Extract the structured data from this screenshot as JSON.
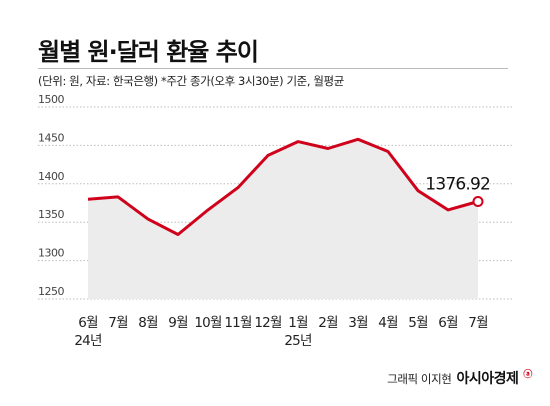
{
  "chart_data": {
    "type": "area",
    "title": "월별 원·달러 환율 추이",
    "subtitle": "(단위: 원, 자료: 한국은행)  *주간 종가(오후 3시30분) 기준, 월평균",
    "categories": [
      "6월",
      "7월",
      "8월",
      "9월",
      "10월",
      "11월",
      "12월",
      "1월",
      "2월",
      "3월",
      "4월",
      "5월",
      "6월",
      "7월"
    ],
    "year_labels": [
      "24년",
      "",
      "",
      "",
      "",
      "",
      "",
      "25년",
      "",
      "",
      "",
      "",
      "",
      ""
    ],
    "values": [
      1380,
      1383,
      1354,
      1334,
      1366,
      1395,
      1437,
      1455,
      1446,
      1458,
      1442,
      1391,
      1366,
      1376.92
    ],
    "last_value_label": "1376.92",
    "ylim": [
      1250,
      1500
    ],
    "yticks": [
      1250,
      1300,
      1350,
      1400,
      1450,
      1500
    ],
    "grid": true,
    "colors": {
      "line": "#d0021b",
      "fill": "#ececec",
      "grid": "#bdbdbd"
    }
  },
  "credit": {
    "text": "그래픽 이지현",
    "brand": "아시아경제",
    "brand_mark": "ⓐ"
  }
}
